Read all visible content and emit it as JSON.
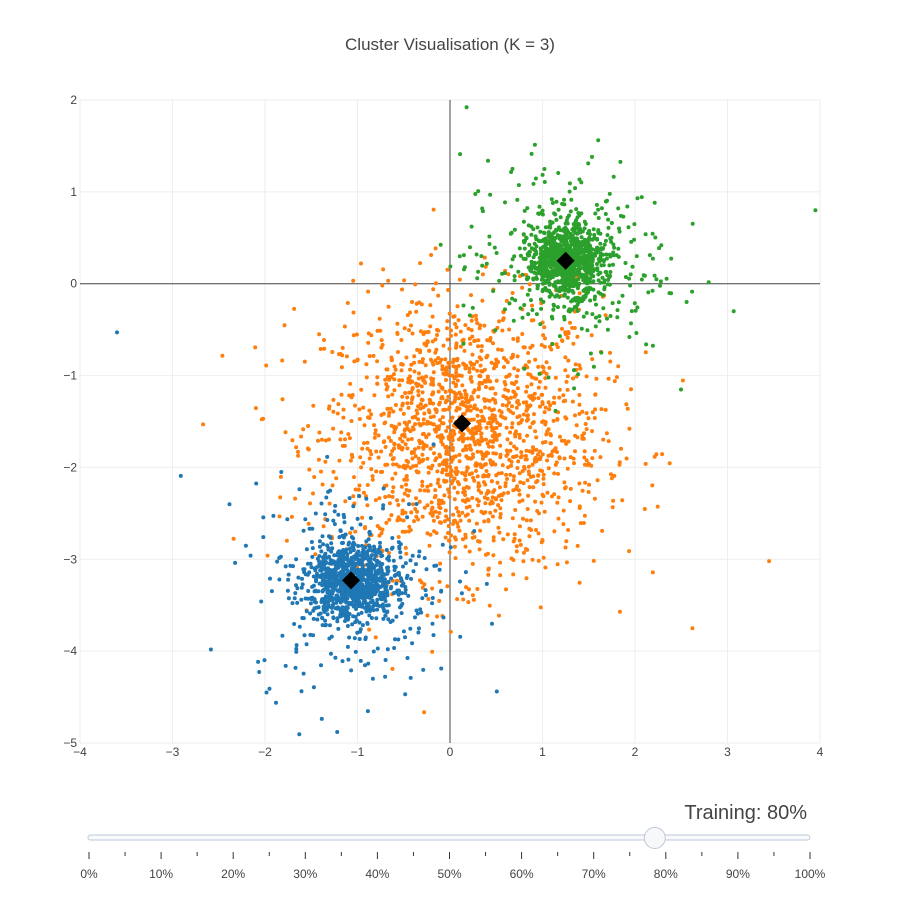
{
  "chart_data": {
    "type": "scatter",
    "title": "Cluster Visualisation (K = 3)",
    "xlabel": "",
    "ylabel": "",
    "xlim": [
      -4,
      4
    ],
    "ylim": [
      -5,
      2
    ],
    "x_ticks": [
      -4,
      -3,
      -2,
      -1,
      0,
      1,
      2,
      3,
      4
    ],
    "y_ticks": [
      2,
      1,
      0,
      -1,
      -2,
      -3,
      -4,
      -5
    ],
    "x_tick_labels": [
      "−4",
      "−3",
      "−2",
      "−1",
      "0",
      "1",
      "2",
      "3",
      "4"
    ],
    "y_tick_labels": [
      "2",
      "1",
      "0",
      "−1",
      "−2",
      "−3",
      "−4",
      "−5"
    ],
    "grid": true,
    "zero_lines": true,
    "legend": "none",
    "clusters": [
      {
        "color": "#1f77b4",
        "center": [
          -1.05,
          -3.25
        ],
        "dense_spread": 0.22,
        "dense_count": 900,
        "diffuse_spread": 0.55,
        "diffuse_count": 320
      },
      {
        "color": "#ff7f0e",
        "center": [
          0.15,
          -1.65
        ],
        "dense_spread": 0.0,
        "dense_count": 0,
        "diffuse_spread": 0.75,
        "diffuse_count": 1700
      },
      {
        "color": "#2ca02c",
        "center": [
          1.25,
          0.25
        ],
        "dense_spread": 0.2,
        "dense_count": 900,
        "diffuse_spread": 0.55,
        "diffuse_count": 330
      }
    ],
    "outliers": [
      {
        "x": 3.95,
        "y": 0.8,
        "color": "#2ca02c"
      },
      {
        "x": 3.45,
        "y": -3.02,
        "color": "#ff7f0e"
      },
      {
        "x": -3.6,
        "y": -0.53,
        "color": "#1f77b4"
      },
      {
        "x": 0.18,
        "y": 1.92,
        "color": "#2ca02c"
      },
      {
        "x": -1.22,
        "y": -4.88,
        "color": "#1f77b4"
      },
      {
        "x": 2.62,
        "y": -3.75,
        "color": "#ff7f0e"
      }
    ],
    "centroids": [
      {
        "x": -1.07,
        "y": -3.23
      },
      {
        "x": 0.13,
        "y": -1.52
      },
      {
        "x": 1.25,
        "y": 0.25
      }
    ],
    "centroid_color": "#000000"
  },
  "slider": {
    "label": "Training: 80%",
    "value": 0.8,
    "ticks": [
      "0%",
      "10%",
      "20%",
      "30%",
      "40%",
      "50%",
      "60%",
      "70%",
      "80%",
      "90%",
      "100%"
    ]
  }
}
